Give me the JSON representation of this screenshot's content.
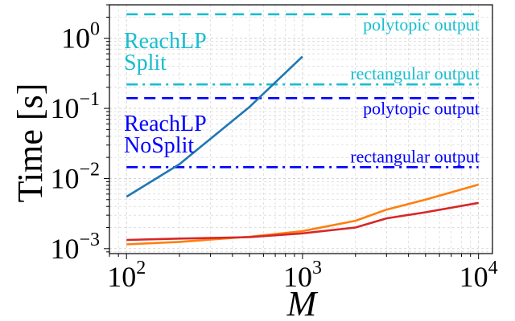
{
  "chart_data": {
    "type": "line",
    "title": "",
    "xlabel": "M",
    "ylabel": "Time [s]",
    "xscale": "log",
    "yscale": "log",
    "xlim": [
      80,
      12000
    ],
    "ylim": [
      0.00085,
      3.0
    ],
    "grid": true,
    "x_ticks": [
      {
        "value": 100,
        "base": "10",
        "exp": "2"
      },
      {
        "value": 1000,
        "base": "10",
        "exp": "3"
      },
      {
        "value": 10000,
        "base": "10",
        "exp": "4"
      }
    ],
    "y_ticks": [
      {
        "value": 0.001,
        "base": "10",
        "exp": "−3"
      },
      {
        "value": 0.01,
        "base": "10",
        "exp": "−2"
      },
      {
        "value": 0.1,
        "base": "10",
        "exp": "−1"
      },
      {
        "value": 1,
        "base": "10",
        "exp": "0"
      }
    ],
    "series": [
      {
        "name": "ReachLP Split",
        "color": "#1f77b4",
        "x": [
          100,
          200,
          500,
          1000
        ],
        "y": [
          0.0055,
          0.016,
          0.105,
          0.55
        ]
      },
      {
        "name": "orange series",
        "color": "#ff7f0e",
        "x": [
          100,
          200,
          500,
          1000,
          2000,
          3000,
          5000,
          10000
        ],
        "y": [
          0.00115,
          0.00125,
          0.00148,
          0.00178,
          0.0025,
          0.0036,
          0.005,
          0.0082
        ]
      },
      {
        "name": "red series",
        "color": "#d62728",
        "x": [
          100,
          200,
          500,
          1000,
          2000,
          3000,
          5000,
          10000
        ],
        "y": [
          0.00133,
          0.00139,
          0.00146,
          0.00165,
          0.002,
          0.0027,
          0.0033,
          0.0045
        ]
      }
    ],
    "reference_lines": [
      {
        "name": "ReachLP Split polytopic output",
        "y": 2.2,
        "style": "dashed",
        "color": "#17becf",
        "label": "polytopic output"
      },
      {
        "name": "ReachLP Split rectangular output",
        "y": 0.22,
        "style": "dashdot",
        "color": "#17becf",
        "label": "rectangular output"
      },
      {
        "name": "ReachLP NoSplit polytopic output",
        "y": 0.14,
        "style": "dashed",
        "color": "#0000ff",
        "label": "polytopic output"
      },
      {
        "name": "ReachLP NoSplit rectangular output",
        "y": 0.0145,
        "style": "dashdot",
        "color": "#0000ff",
        "label": "rectangular output"
      }
    ],
    "annotations": [
      {
        "name": "split-group-label",
        "lines": [
          "ReachLP",
          "Split"
        ],
        "color": "#17becf"
      },
      {
        "name": "nosplit-group-label",
        "lines": [
          "ReachLP",
          "NoSplit"
        ],
        "color": "#0000ff"
      }
    ]
  }
}
